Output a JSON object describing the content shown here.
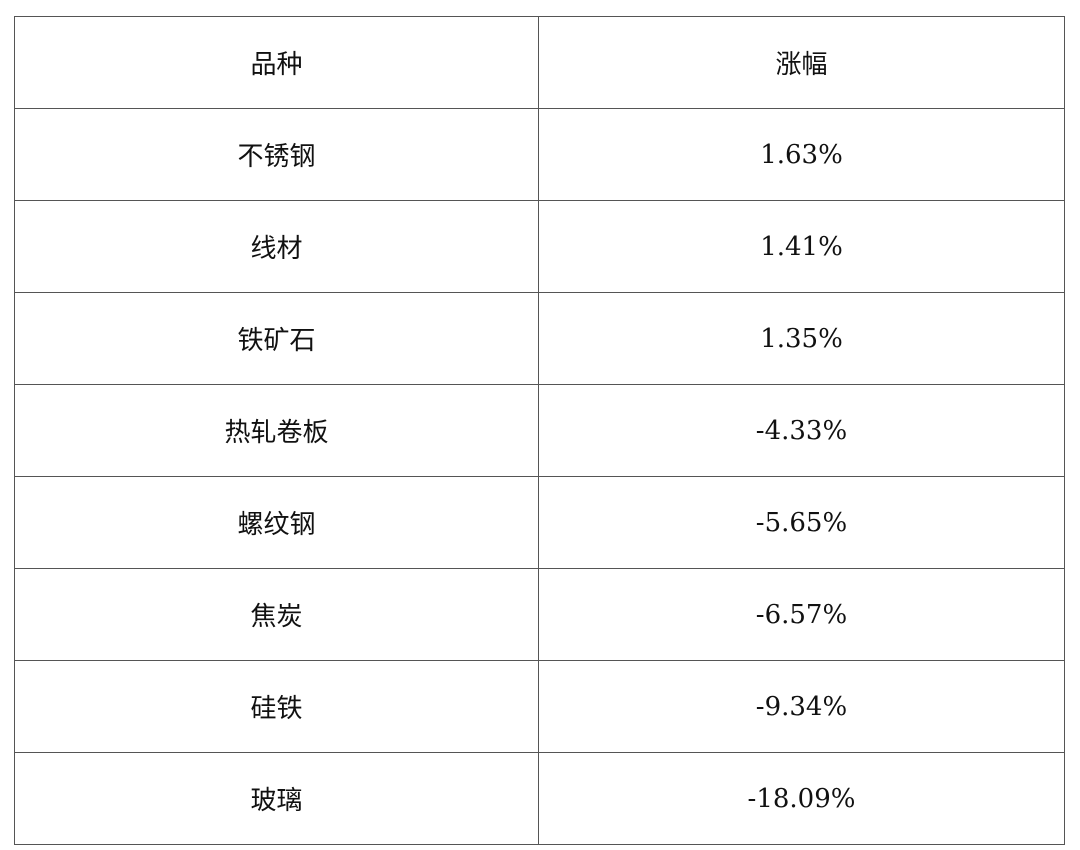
{
  "table": {
    "headers": [
      "品种",
      "涨幅"
    ],
    "rows": [
      [
        "不锈钢",
        "1.63%"
      ],
      [
        "线材",
        "1.41%"
      ],
      [
        "铁矿石",
        "1.35%"
      ],
      [
        "热轧卷板",
        "-4.33%"
      ],
      [
        "螺纹钢",
        "-5.65%"
      ],
      [
        "焦炭",
        "-6.57%"
      ],
      [
        "硅铁",
        "-9.34%"
      ],
      [
        "玻璃",
        "-18.09%"
      ]
    ]
  }
}
